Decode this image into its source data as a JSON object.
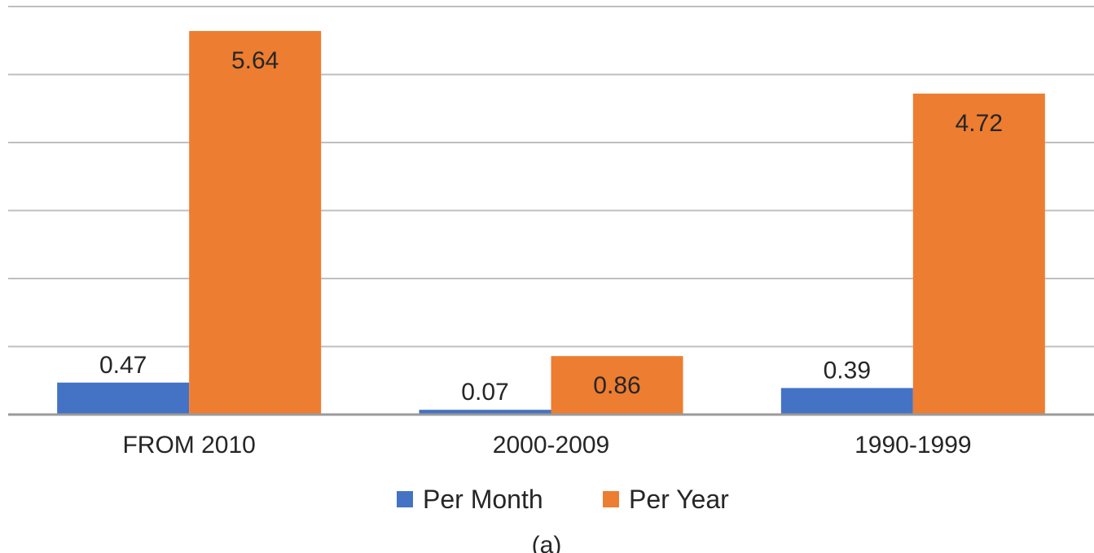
{
  "chart_data": {
    "type": "bar",
    "categories": [
      "FROM 2010",
      "2000-2009",
      "1990-1999"
    ],
    "series": [
      {
        "name": "Per Month",
        "values": [
          0.47,
          0.07,
          0.39
        ],
        "labels": [
          "0.47",
          "0.07",
          "0.39"
        ],
        "color": "#4472c4"
      },
      {
        "name": "Per Year",
        "values": [
          5.64,
          0.86,
          4.72
        ],
        "labels": [
          "5.64",
          "0.86",
          "4.72"
        ],
        "color": "#ed7d31"
      }
    ],
    "ylim": [
      0,
      6
    ],
    "grid": true,
    "legend_position": "bottom",
    "caption": "(a)"
  }
}
